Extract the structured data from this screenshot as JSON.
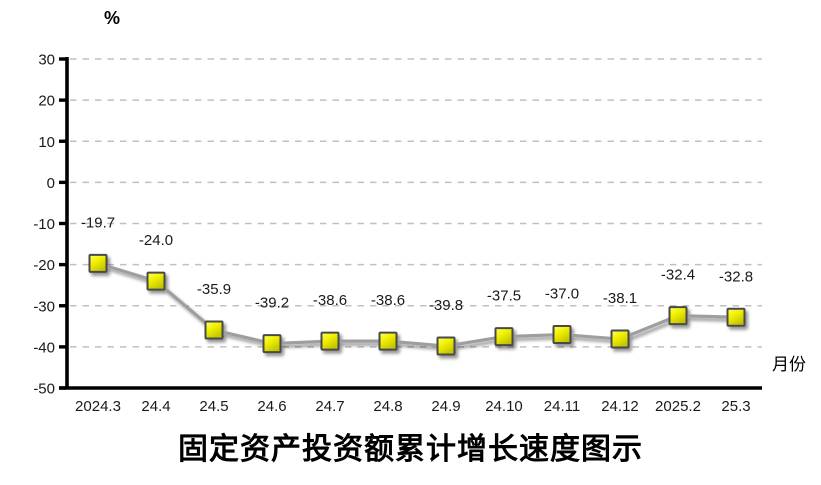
{
  "page": {
    "background": "#ffffff"
  },
  "chart_data": {
    "type": "line",
    "title": "固定资产投资额累计增长速度图示",
    "y_axis_unit_label": "%",
    "x_axis_label": "月份",
    "categories": [
      "2024.3",
      "24.4",
      "24.5",
      "24.6",
      "24.7",
      "24.8",
      "24.9",
      "24.10",
      "24.11",
      "24.12",
      "2025.2",
      "25.3"
    ],
    "values": [
      -19.7,
      -24.0,
      -35.9,
      -39.2,
      -38.6,
      -38.6,
      -39.8,
      -37.5,
      -37.0,
      -38.1,
      -32.4,
      -32.8
    ],
    "data_labels": [
      "-19.7",
      "-24.0",
      "-35.9",
      "-39.2",
      "-38.6",
      "-38.6",
      "-39.8",
      "-37.5",
      "-37.0",
      "-38.1",
      "-32.4",
      "-32.8"
    ],
    "ylim": [
      -50,
      30
    ],
    "y_ticks": [
      30,
      20,
      10,
      0,
      -10,
      -20,
      -30,
      -40,
      -50
    ],
    "grid": true,
    "legend": "none",
    "colors": {
      "line": "#9e9e9e",
      "marker_fill_top": "#ffff55",
      "marker_fill_bottom": "#c9c900",
      "marker_border": "#4a4a4a",
      "gridline": "#c0c0c0",
      "axis": "#000000",
      "label": "#1a1a1a"
    }
  }
}
